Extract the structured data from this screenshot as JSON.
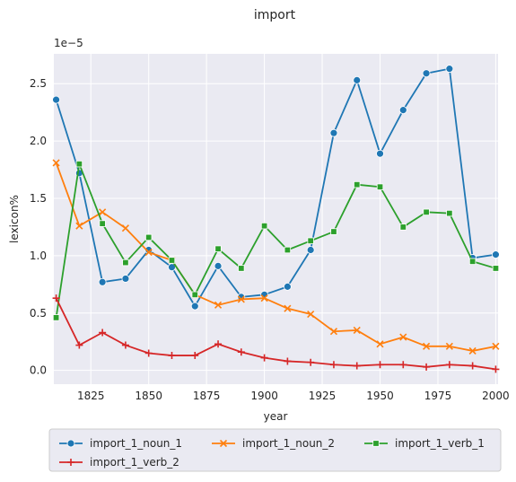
{
  "chart_data": {
    "type": "line",
    "title": "import",
    "xlabel": "year",
    "ylabel": "lexicon%",
    "y_offset_label": "1e−5",
    "xlim": [
      1809,
      2001
    ],
    "ylim": [
      -0.12,
      2.76
    ],
    "x_ticks": [
      1825,
      1850,
      1875,
      1900,
      1925,
      1950,
      1975,
      2000
    ],
    "y_ticks": [
      0.0,
      0.5,
      1.0,
      1.5,
      2.0,
      2.5
    ],
    "y_tick_labels": [
      "0.0",
      "0.5",
      "1.0",
      "1.5",
      "2.0",
      "2.5"
    ],
    "grid": true,
    "legend_placement": "bottom, below axes",
    "x": [
      1810,
      1820,
      1830,
      1840,
      1850,
      1860,
      1870,
      1880,
      1890,
      1900,
      1910,
      1920,
      1930,
      1940,
      1950,
      1960,
      1970,
      1980,
      1990,
      2000
    ],
    "series": [
      {
        "name": "import_1_noun_1",
        "color": "#1f77b4",
        "marker": "circle",
        "values": [
          2.36,
          1.72,
          0.77,
          0.8,
          1.05,
          0.9,
          0.56,
          0.91,
          0.64,
          0.66,
          0.73,
          1.05,
          2.07,
          2.53,
          1.89,
          2.27,
          2.59,
          2.63,
          0.98,
          1.01
        ]
      },
      {
        "name": "import_1_noun_2",
        "color": "#ff7f0e",
        "marker": "x",
        "values": [
          1.81,
          1.26,
          1.38,
          1.24,
          1.03,
          0.96,
          0.66,
          0.57,
          0.62,
          0.63,
          0.54,
          0.49,
          0.34,
          0.35,
          0.23,
          0.29,
          0.21,
          0.21,
          0.17,
          0.21
        ]
      },
      {
        "name": "import_1_verb_1",
        "color": "#2ca02c",
        "marker": "square",
        "values": [
          0.46,
          1.8,
          1.28,
          0.94,
          1.16,
          0.96,
          0.66,
          1.06,
          0.89,
          1.26,
          1.05,
          1.13,
          1.21,
          1.62,
          1.6,
          1.25,
          1.38,
          1.37,
          0.95,
          0.89
        ]
      },
      {
        "name": "import_1_verb_2",
        "color": "#d62728",
        "marker": "plus",
        "values": [
          0.63,
          0.22,
          0.33,
          0.22,
          0.15,
          0.13,
          0.13,
          0.23,
          0.16,
          0.11,
          0.08,
          0.07,
          0.05,
          0.04,
          0.05,
          0.05,
          0.03,
          0.05,
          0.04,
          0.01
        ]
      }
    ]
  }
}
